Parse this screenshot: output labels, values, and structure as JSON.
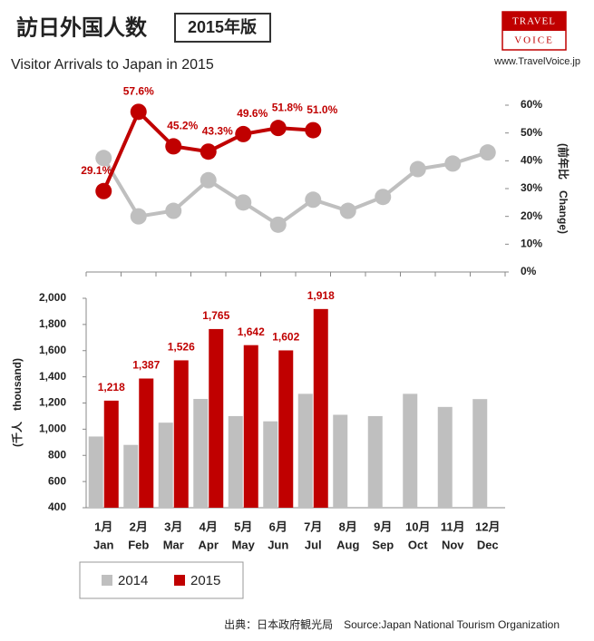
{
  "header": {
    "title": "訪日外国人数",
    "edition": "2015年版",
    "subtitle": "Visitor Arrivals to Japan in 2015",
    "logo_top": "TRAVEL",
    "logo_bottom": "VOICE",
    "url": "www.TravelVoice.jp"
  },
  "source": "出典：日本政府観光局　Source:Japan  National Tourism  Organization",
  "chart_data": [
    {
      "type": "line",
      "y2label": "(前年比　Change)",
      "y2lim": [
        0,
        60
      ],
      "y2ticks": [
        {
          "value": 0,
          "label": "0%"
        },
        {
          "value": 10,
          "label": "10%"
        },
        {
          "value": 20,
          "label": "20%"
        },
        {
          "value": 30,
          "label": "30%"
        },
        {
          "value": 40,
          "label": "40%"
        },
        {
          "value": 50,
          "label": "50%"
        },
        {
          "value": 60,
          "label": "60%"
        }
      ],
      "series": [
        {
          "color": "#bfbfbf",
          "axis": "y2",
          "values": [
            41,
            20,
            22,
            33,
            25,
            17,
            26,
            22,
            27,
            37,
            39,
            43
          ]
        },
        {
          "color": "#c00000",
          "axis": "y2",
          "values": [
            29.1,
            57.6,
            45.2,
            43.3,
            49.6,
            51.8,
            51.0,
            null,
            null,
            null,
            null,
            null
          ],
          "value_labels": [
            "29.1%",
            "57.6%",
            "45.2%",
            "43.3%",
            "49.6%",
            "51.8%",
            "51.0%",
            null,
            null,
            null,
            null,
            null
          ]
        }
      ]
    },
    {
      "type": "bar",
      "ylabel": "(千人　thousand)",
      "ylim": [
        400,
        2000
      ],
      "yticks": [
        400,
        600,
        800,
        {
          "value": 1000,
          "label": "1,000"
        },
        {
          "value": 1200,
          "label": "1,200"
        },
        {
          "value": 1400,
          "label": "1,400"
        },
        {
          "value": 1600,
          "label": "1,600"
        },
        {
          "value": 1800,
          "label": "1,800"
        },
        {
          "value": 2000,
          "label": "2,000"
        }
      ],
      "categories": [
        [
          "1月",
          "Jan"
        ],
        [
          "2月",
          "Feb"
        ],
        [
          "3月",
          "Mar"
        ],
        [
          "4月",
          "Apr"
        ],
        [
          "5月",
          "May"
        ],
        [
          "6月",
          "Jun"
        ],
        [
          "7月",
          "Jul"
        ],
        [
          "8月",
          "Aug"
        ],
        [
          "9月",
          "Sep"
        ],
        [
          "10月",
          "Oct"
        ],
        [
          "11月",
          "Nov"
        ],
        [
          "12月",
          "Dec"
        ]
      ],
      "legend": "bottom-left",
      "series": [
        {
          "name": "2014",
          "color": "#bfbfbf",
          "values": [
            944,
            880,
            1050,
            1231,
            1100,
            1060,
            1270,
            1110,
            1100,
            1270,
            1170,
            1230
          ]
        },
        {
          "name": "2015",
          "color": "#c00000",
          "values": [
            1218,
            1387,
            1526,
            1765,
            1642,
            1602,
            1918,
            null,
            null,
            null,
            null,
            null
          ],
          "value_labels": [
            "1,218",
            "1,387",
            "1,526",
            "1,765",
            "1,642",
            "1,602",
            "1,918",
            null,
            null,
            null,
            null,
            null
          ]
        }
      ]
    }
  ]
}
